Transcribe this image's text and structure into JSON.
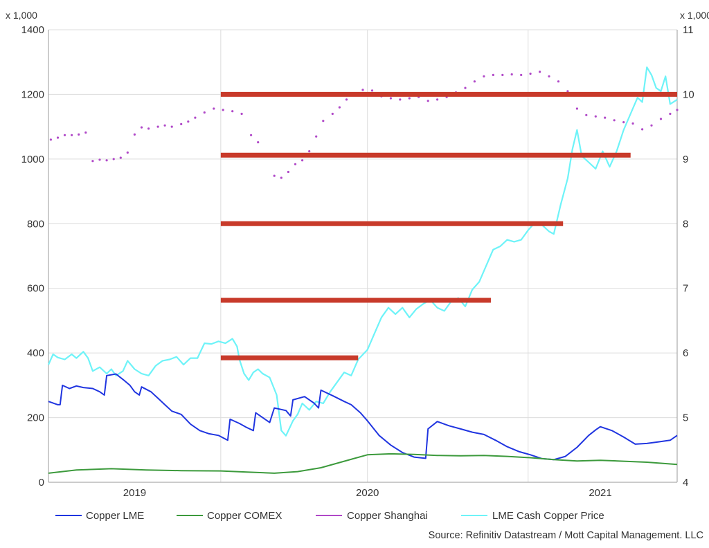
{
  "chart_data": {
    "type": "line",
    "title": "",
    "source": "Source: Refinitiv Datastream / Mott Capital Management. LLC",
    "left_axis": {
      "scale_note": "x 1,000",
      "range": [
        0,
        1400
      ],
      "ticks": [
        0,
        200,
        400,
        600,
        800,
        1000,
        1200,
        1400
      ]
    },
    "right_axis": {
      "scale_note": "x 1,000",
      "range": [
        4,
        11
      ],
      "ticks": [
        4,
        5,
        6,
        7,
        8,
        9,
        10,
        11
      ]
    },
    "x_axis": {
      "range": [
        2018.63,
        2021.33
      ],
      "tick_labels": [
        "2019",
        "2020",
        "2021"
      ],
      "tick_positions": [
        2019.0,
        2020.0,
        2021.0
      ],
      "grid_positions": [
        2019.37,
        2020.0,
        2020.69
      ]
    },
    "grid": true,
    "legend_position": "bottom",
    "colors": {
      "lme": "#2035e0",
      "comex": "#3c9a3c",
      "shanghai": "#b048c8",
      "cash": "#6ef3f8",
      "support": "#c83a2a",
      "grid": "#dcdcdc",
      "axis": "#999999"
    },
    "series": [
      {
        "name": "Copper LME",
        "axis": "left",
        "style": "line",
        "points": [
          [
            2018.63,
            250
          ],
          [
            2018.67,
            240
          ],
          [
            2018.68,
            240
          ],
          [
            2018.69,
            300
          ],
          [
            2018.72,
            290
          ],
          [
            2018.75,
            298
          ],
          [
            2018.78,
            293
          ],
          [
            2018.82,
            290
          ],
          [
            2018.85,
            280
          ],
          [
            2018.87,
            270
          ],
          [
            2018.88,
            330
          ],
          [
            2018.92,
            335
          ],
          [
            2018.95,
            318
          ],
          [
            2018.98,
            300
          ],
          [
            2019.0,
            280
          ],
          [
            2019.02,
            270
          ],
          [
            2019.03,
            295
          ],
          [
            2019.07,
            280
          ],
          [
            2019.1,
            260
          ],
          [
            2019.13,
            240
          ],
          [
            2019.16,
            220
          ],
          [
            2019.2,
            210
          ],
          [
            2019.24,
            180
          ],
          [
            2019.28,
            160
          ],
          [
            2019.32,
            150
          ],
          [
            2019.36,
            145
          ],
          [
            2019.4,
            130
          ],
          [
            2019.41,
            195
          ],
          [
            2019.45,
            182
          ],
          [
            2019.48,
            170
          ],
          [
            2019.51,
            160
          ],
          [
            2019.52,
            215
          ],
          [
            2019.55,
            200
          ],
          [
            2019.58,
            185
          ],
          [
            2019.6,
            230
          ],
          [
            2019.65,
            222
          ],
          [
            2019.67,
            205
          ],
          [
            2019.68,
            255
          ],
          [
            2019.73,
            265
          ],
          [
            2019.77,
            245
          ],
          [
            2019.79,
            230
          ],
          [
            2019.8,
            285
          ],
          [
            2019.85,
            268
          ],
          [
            2019.9,
            250
          ],
          [
            2019.93,
            240
          ],
          [
            2019.97,
            215
          ],
          [
            2020.0,
            190
          ],
          [
            2020.05,
            145
          ],
          [
            2020.1,
            115
          ],
          [
            2020.15,
            92
          ],
          [
            2020.2,
            78
          ],
          [
            2020.25,
            74
          ],
          [
            2020.26,
            165
          ],
          [
            2020.3,
            188
          ],
          [
            2020.35,
            175
          ],
          [
            2020.4,
            165
          ],
          [
            2020.45,
            155
          ],
          [
            2020.5,
            148
          ],
          [
            2020.55,
            130
          ],
          [
            2020.6,
            110
          ],
          [
            2020.65,
            95
          ],
          [
            2020.7,
            85
          ],
          [
            2020.75,
            73
          ],
          [
            2020.8,
            70
          ],
          [
            2020.85,
            80
          ],
          [
            2020.9,
            108
          ],
          [
            2020.95,
            145
          ],
          [
            2020.98,
            162
          ],
          [
            2021.0,
            172
          ],
          [
            2021.05,
            160
          ],
          [
            2021.1,
            140
          ],
          [
            2021.15,
            118
          ],
          [
            2021.2,
            120
          ],
          [
            2021.25,
            125
          ],
          [
            2021.3,
            130
          ],
          [
            2021.33,
            145
          ]
        ]
      },
      {
        "name": "Copper COMEX",
        "axis": "left",
        "style": "line",
        "points": [
          [
            2018.63,
            28
          ],
          [
            2018.75,
            38
          ],
          [
            2018.9,
            42
          ],
          [
            2019.05,
            38
          ],
          [
            2019.2,
            36
          ],
          [
            2019.37,
            35
          ],
          [
            2019.5,
            31
          ],
          [
            2019.6,
            28
          ],
          [
            2019.7,
            33
          ],
          [
            2019.8,
            45
          ],
          [
            2019.9,
            65
          ],
          [
            2020.0,
            85
          ],
          [
            2020.1,
            88
          ],
          [
            2020.2,
            86
          ],
          [
            2020.3,
            83
          ],
          [
            2020.4,
            82
          ],
          [
            2020.5,
            83
          ],
          [
            2020.6,
            80
          ],
          [
            2020.7,
            76
          ],
          [
            2020.8,
            70
          ],
          [
            2020.9,
            66
          ],
          [
            2021.0,
            68
          ],
          [
            2021.1,
            65
          ],
          [
            2021.2,
            62
          ],
          [
            2021.33,
            55
          ]
        ]
      },
      {
        "name": "Copper Shanghai",
        "axis": "right",
        "style": "dots",
        "points": [
          [
            2018.64,
            9.3
          ],
          [
            2018.67,
            9.33
          ],
          [
            2018.7,
            9.37
          ],
          [
            2018.73,
            9.37
          ],
          [
            2018.76,
            9.38
          ],
          [
            2018.79,
            9.41
          ],
          [
            2018.82,
            8.97
          ],
          [
            2018.85,
            8.99
          ],
          [
            2018.88,
            8.98
          ],
          [
            2018.91,
            9.0
          ],
          [
            2018.94,
            9.02
          ],
          [
            2018.97,
            9.1
          ],
          [
            2019.0,
            9.38
          ],
          [
            2019.03,
            9.49
          ],
          [
            2019.06,
            9.47
          ],
          [
            2019.1,
            9.5
          ],
          [
            2019.13,
            9.52
          ],
          [
            2019.16,
            9.5
          ],
          [
            2019.2,
            9.54
          ],
          [
            2019.23,
            9.58
          ],
          [
            2019.26,
            9.64
          ],
          [
            2019.3,
            9.72
          ],
          [
            2019.34,
            9.78
          ],
          [
            2019.38,
            9.76
          ],
          [
            2019.42,
            9.74
          ],
          [
            2019.46,
            9.7
          ],
          [
            2019.5,
            9.37
          ],
          [
            2019.53,
            9.26
          ],
          [
            2019.56,
            9.06
          ],
          [
            2019.6,
            8.74
          ],
          [
            2019.63,
            8.71
          ],
          [
            2019.66,
            8.8
          ],
          [
            2019.69,
            8.92
          ],
          [
            2019.72,
            8.98
          ],
          [
            2019.75,
            9.12
          ],
          [
            2019.78,
            9.35
          ],
          [
            2019.81,
            9.59
          ],
          [
            2019.85,
            9.7
          ],
          [
            2019.88,
            9.8
          ],
          [
            2019.91,
            9.92
          ],
          [
            2019.95,
            10.0
          ],
          [
            2019.98,
            10.07
          ],
          [
            2020.02,
            10.06
          ],
          [
            2020.06,
            9.97
          ],
          [
            2020.1,
            9.94
          ],
          [
            2020.14,
            9.92
          ],
          [
            2020.18,
            9.94
          ],
          [
            2020.22,
            9.96
          ],
          [
            2020.26,
            9.9
          ],
          [
            2020.3,
            9.92
          ],
          [
            2020.34,
            9.96
          ],
          [
            2020.38,
            10.03
          ],
          [
            2020.42,
            10.1
          ],
          [
            2020.46,
            10.2
          ],
          [
            2020.5,
            10.28
          ],
          [
            2020.54,
            10.3
          ],
          [
            2020.58,
            10.3
          ],
          [
            2020.62,
            10.31
          ],
          [
            2020.66,
            10.3
          ],
          [
            2020.7,
            10.32
          ],
          [
            2020.74,
            10.35
          ],
          [
            2020.78,
            10.28
          ],
          [
            2020.82,
            10.2
          ],
          [
            2020.86,
            10.05
          ],
          [
            2020.9,
            9.78
          ],
          [
            2020.94,
            9.68
          ],
          [
            2020.98,
            9.66
          ],
          [
            2021.02,
            9.64
          ],
          [
            2021.06,
            9.6
          ],
          [
            2021.1,
            9.57
          ],
          [
            2021.14,
            9.55
          ],
          [
            2021.18,
            9.46
          ],
          [
            2021.22,
            9.52
          ],
          [
            2021.26,
            9.62
          ],
          [
            2021.3,
            9.7
          ],
          [
            2021.33,
            9.76
          ]
        ]
      },
      {
        "name": "LME Cash Copper Price",
        "axis": "right",
        "style": "line",
        "points": [
          [
            2018.63,
            5.82
          ],
          [
            2018.65,
            5.98
          ],
          [
            2018.67,
            5.93
          ],
          [
            2018.7,
            5.9
          ],
          [
            2018.73,
            5.98
          ],
          [
            2018.75,
            5.92
          ],
          [
            2018.78,
            6.02
          ],
          [
            2018.8,
            5.92
          ],
          [
            2018.82,
            5.72
          ],
          [
            2018.85,
            5.78
          ],
          [
            2018.88,
            5.68
          ],
          [
            2018.9,
            5.75
          ],
          [
            2018.92,
            5.65
          ],
          [
            2018.95,
            5.72
          ],
          [
            2018.97,
            5.88
          ],
          [
            2019.0,
            5.75
          ],
          [
            2019.03,
            5.68
          ],
          [
            2019.06,
            5.65
          ],
          [
            2019.09,
            5.8
          ],
          [
            2019.12,
            5.88
          ],
          [
            2019.15,
            5.9
          ],
          [
            2019.18,
            5.94
          ],
          [
            2019.21,
            5.82
          ],
          [
            2019.24,
            5.92
          ],
          [
            2019.27,
            5.92
          ],
          [
            2019.3,
            6.15
          ],
          [
            2019.33,
            6.14
          ],
          [
            2019.36,
            6.18
          ],
          [
            2019.39,
            6.15
          ],
          [
            2019.42,
            6.22
          ],
          [
            2019.44,
            6.1
          ],
          [
            2019.45,
            5.9
          ],
          [
            2019.47,
            5.68
          ],
          [
            2019.49,
            5.58
          ],
          [
            2019.51,
            5.7
          ],
          [
            2019.53,
            5.75
          ],
          [
            2019.55,
            5.68
          ],
          [
            2019.58,
            5.62
          ],
          [
            2019.61,
            5.35
          ],
          [
            2019.63,
            4.8
          ],
          [
            2019.65,
            4.72
          ],
          [
            2019.68,
            4.95
          ],
          [
            2019.7,
            5.05
          ],
          [
            2019.72,
            5.22
          ],
          [
            2019.75,
            5.12
          ],
          [
            2019.78,
            5.25
          ],
          [
            2019.81,
            5.22
          ],
          [
            2019.84,
            5.4
          ],
          [
            2019.87,
            5.55
          ],
          [
            2019.9,
            5.7
          ],
          [
            2019.93,
            5.65
          ],
          [
            2019.96,
            5.9
          ],
          [
            2020.0,
            6.05
          ],
          [
            2020.03,
            6.3
          ],
          [
            2020.06,
            6.55
          ],
          [
            2020.09,
            6.7
          ],
          [
            2020.12,
            6.6
          ],
          [
            2020.15,
            6.7
          ],
          [
            2020.18,
            6.55
          ],
          [
            2020.21,
            6.68
          ],
          [
            2020.24,
            6.76
          ],
          [
            2020.27,
            6.82
          ],
          [
            2020.3,
            6.7
          ],
          [
            2020.33,
            6.65
          ],
          [
            2020.36,
            6.8
          ],
          [
            2020.39,
            6.85
          ],
          [
            2020.42,
            6.72
          ],
          [
            2020.45,
            6.98
          ],
          [
            2020.48,
            7.1
          ],
          [
            2020.51,
            7.35
          ],
          [
            2020.54,
            7.6
          ],
          [
            2020.57,
            7.65
          ],
          [
            2020.6,
            7.75
          ],
          [
            2020.63,
            7.72
          ],
          [
            2020.66,
            7.75
          ],
          [
            2020.69,
            7.9
          ],
          [
            2020.72,
            8.02
          ],
          [
            2020.75,
            7.98
          ],
          [
            2020.78,
            7.88
          ],
          [
            2020.8,
            7.84
          ],
          [
            2020.83,
            8.3
          ],
          [
            2020.86,
            8.7
          ],
          [
            2020.88,
            9.15
          ],
          [
            2020.9,
            9.45
          ],
          [
            2020.92,
            9.05
          ],
          [
            2020.95,
            8.95
          ],
          [
            2020.98,
            8.85
          ],
          [
            2021.01,
            9.12
          ],
          [
            2021.04,
            8.88
          ],
          [
            2021.07,
            9.12
          ],
          [
            2021.1,
            9.45
          ],
          [
            2021.13,
            9.7
          ],
          [
            2021.16,
            9.95
          ],
          [
            2021.18,
            9.88
          ],
          [
            2021.2,
            10.42
          ],
          [
            2021.22,
            10.3
          ],
          [
            2021.24,
            10.1
          ],
          [
            2021.26,
            10.05
          ],
          [
            2021.28,
            10.28
          ],
          [
            2021.3,
            9.85
          ],
          [
            2021.33,
            9.92
          ]
        ]
      }
    ],
    "support_lines": [
      {
        "value": 1200,
        "x_start": 2019.37,
        "x_end": 2021.33
      },
      {
        "value": 1012,
        "x_start": 2019.37,
        "x_end": 2021.13
      },
      {
        "value": 800,
        "x_start": 2019.37,
        "x_end": 2020.84
      },
      {
        "value": 563,
        "x_start": 2019.37,
        "x_end": 2020.53
      },
      {
        "value": 385,
        "x_start": 2019.37,
        "x_end": 2019.96
      }
    ]
  }
}
